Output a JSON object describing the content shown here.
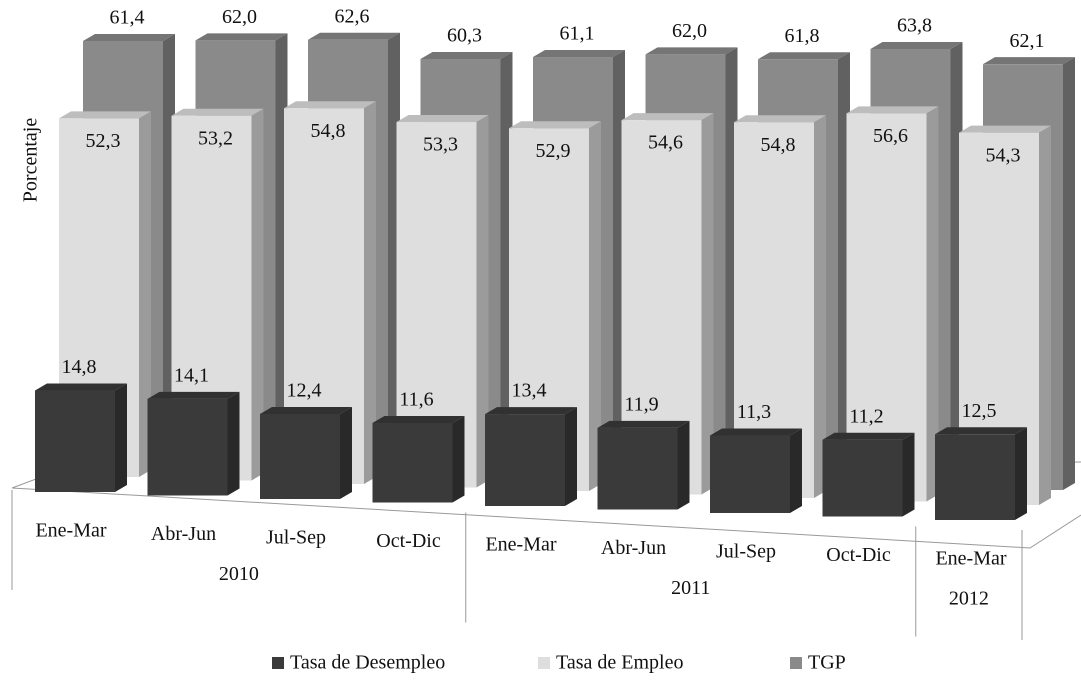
{
  "chart_data": {
    "type": "bar3d",
    "y_label": "Porcentaje",
    "categories": [
      "Ene-Mar",
      "Abr-Jun",
      "Jul-Sep",
      "Oct-Dic",
      "Ene-Mar",
      "Abr-Jun",
      "Jul-Sep",
      "Oct-Dic",
      "Ene-Mar"
    ],
    "groups": [
      {
        "label": "2010",
        "size": 4
      },
      {
        "label": "2011",
        "size": 4
      },
      {
        "label": "2012",
        "size": 1
      }
    ],
    "ylim": [
      0,
      70
    ],
    "series": [
      {
        "name": "Tasa de Desempleo",
        "color": "#3a3a3a",
        "values": [
          14.8,
          14.1,
          12.4,
          11.6,
          13.4,
          11.9,
          11.3,
          11.2,
          12.5
        ],
        "value_labels": [
          "14,8",
          "14,1",
          "12,4",
          "11,6",
          "13,4",
          "11,9",
          "11,3",
          "11,2",
          "12,5"
        ]
      },
      {
        "name": "Tasa de Empleo",
        "color": "#dedede",
        "values": [
          52.3,
          53.2,
          54.8,
          53.3,
          52.9,
          54.6,
          54.8,
          56.6,
          54.3
        ],
        "value_labels": [
          "52,3",
          "53,2",
          "54,8",
          "53,3",
          "52,9",
          "54,6",
          "54,8",
          "56,6",
          "54,3"
        ]
      },
      {
        "name": "TGP",
        "color": "#8a8a8a",
        "values": [
          61.4,
          62.0,
          62.6,
          60.3,
          61.1,
          62.0,
          61.8,
          63.8,
          62.1
        ],
        "value_labels": [
          "61,4",
          "62,0",
          "62,6",
          "60,3",
          "61,1",
          "62,0",
          "61,8",
          "63,8",
          "62,1"
        ]
      }
    ]
  }
}
